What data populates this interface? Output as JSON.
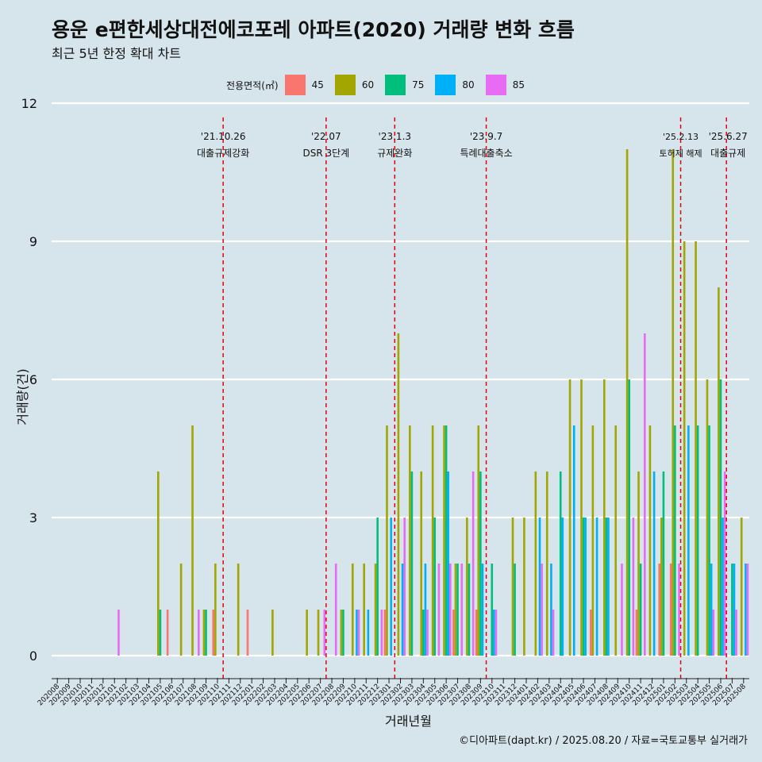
{
  "title": "용운 e편한세상대전에코포레 아파트(2020) 거래량 변화 흐름",
  "subtitle": "최근 5년 한정 확대 차트",
  "caption": "©디아파트(dapt.kr) / 2025.08.20 / 자료=국토교통부 실거래가",
  "legend_title": "전용면적(㎡)",
  "chart_data": {
    "type": "bar",
    "xlabel": "거래년월",
    "ylabel": "거래량(건)",
    "ylim": [
      -0.5,
      12
    ],
    "yticks": [
      0,
      3,
      6,
      9,
      12
    ],
    "grid": true,
    "legend_position": "top",
    "categories": [
      "202008",
      "202009",
      "202010",
      "202011",
      "202012",
      "202101",
      "202102",
      "202103",
      "202104",
      "202105",
      "202106",
      "202107",
      "202108",
      "202109",
      "202110",
      "202111",
      "202112",
      "202201",
      "202202",
      "202203",
      "202204",
      "202205",
      "202206",
      "202207",
      "202208",
      "202209",
      "202210",
      "202211",
      "202212",
      "202301",
      "202302",
      "202303",
      "202304",
      "202305",
      "202306",
      "202307",
      "202308",
      "202309",
      "202310",
      "202311",
      "202312",
      "202401",
      "202402",
      "202403",
      "202404",
      "202405",
      "202406",
      "202407",
      "202408",
      "202409",
      "202410",
      "202411",
      "202412",
      "202501",
      "202502",
      "202503",
      "202504",
      "202505",
      "202506",
      "202507",
      "202508"
    ],
    "series": [
      {
        "name": "45",
        "color": "#f8766d",
        "values": [
          0,
          0,
          0,
          0,
          0,
          0,
          0,
          0,
          0,
          0,
          1,
          0,
          0,
          0,
          1,
          0,
          0,
          1,
          0,
          0,
          0,
          0,
          0,
          0,
          0,
          0,
          0,
          0,
          0,
          1,
          0,
          0,
          0,
          0,
          0,
          1,
          0,
          1,
          0,
          0,
          0,
          0,
          0,
          0,
          0,
          0,
          0,
          1,
          0,
          0,
          0,
          1,
          0,
          2,
          2,
          0,
          0,
          0,
          0,
          0,
          0
        ]
      },
      {
        "name": "60",
        "color": "#a3a500",
        "values": [
          0,
          0,
          0,
          0,
          0,
          0,
          0,
          0,
          0,
          4,
          0,
          2,
          5,
          1,
          2,
          0,
          2,
          0,
          0,
          1,
          0,
          0,
          1,
          1,
          0,
          1,
          2,
          2,
          2,
          5,
          7,
          5,
          4,
          5,
          5,
          2,
          3,
          5,
          0,
          0,
          3,
          3,
          4,
          4,
          0,
          6,
          6,
          5,
          6,
          5,
          11,
          4,
          5,
          3,
          11,
          9,
          9,
          6,
          8,
          0,
          3
        ]
      },
      {
        "name": "75",
        "color": "#00bf7d",
        "values": [
          0,
          0,
          0,
          0,
          0,
          0,
          0,
          0,
          0,
          1,
          0,
          0,
          0,
          1,
          0,
          0,
          0,
          0,
          0,
          0,
          0,
          0,
          0,
          0,
          0,
          1,
          0,
          0,
          3,
          0,
          0,
          4,
          1,
          3,
          5,
          2,
          2,
          4,
          2,
          0,
          2,
          0,
          0,
          0,
          4,
          0,
          3,
          0,
          3,
          0,
          6,
          2,
          0,
          4,
          5,
          0,
          5,
          5,
          6,
          2,
          0
        ]
      },
      {
        "name": "80",
        "color": "#00b0f6",
        "values": [
          0,
          0,
          0,
          0,
          0,
          0,
          0,
          0,
          0,
          0,
          0,
          0,
          0,
          0,
          0,
          0,
          0,
          0,
          0,
          0,
          0,
          0,
          0,
          0,
          0,
          0,
          1,
          1,
          0,
          3,
          2,
          0,
          2,
          0,
          4,
          0,
          0,
          2,
          1,
          0,
          0,
          0,
          3,
          2,
          3,
          5,
          3,
          3,
          3,
          0,
          0,
          0,
          4,
          0,
          0,
          5,
          0,
          2,
          3,
          2,
          2
        ]
      },
      {
        "name": "85",
        "color": "#e76bf3",
        "values": [
          0,
          0,
          0,
          0,
          0,
          1,
          0,
          0,
          0,
          0,
          0,
          0,
          1,
          0,
          0,
          0,
          0,
          0,
          0,
          0,
          0,
          0,
          0,
          1,
          2,
          0,
          1,
          0,
          1,
          0,
          3,
          0,
          1,
          2,
          2,
          2,
          4,
          0,
          1,
          0,
          0,
          0,
          2,
          1,
          0,
          0,
          0,
          0,
          0,
          2,
          3,
          7,
          0,
          0,
          2,
          0,
          0,
          1,
          4,
          1,
          2
        ]
      }
    ],
    "events": [
      {
        "after": "202110",
        "date": "'21.10.26",
        "label": "대출규제강화"
      },
      {
        "after": "202207",
        "date": "'22.07",
        "label": "DSR 3단계"
      },
      {
        "after": "202301",
        "date": "'23.1.3",
        "label": "규제완화"
      },
      {
        "after": "202309",
        "date": "'23.9.7",
        "label": "특례대출축소"
      },
      {
        "after": "202502",
        "date": "'25.2.13",
        "label": "토허제 해제"
      },
      {
        "after": "202506",
        "date": "'25.6.27",
        "label": "대출규제"
      }
    ]
  }
}
